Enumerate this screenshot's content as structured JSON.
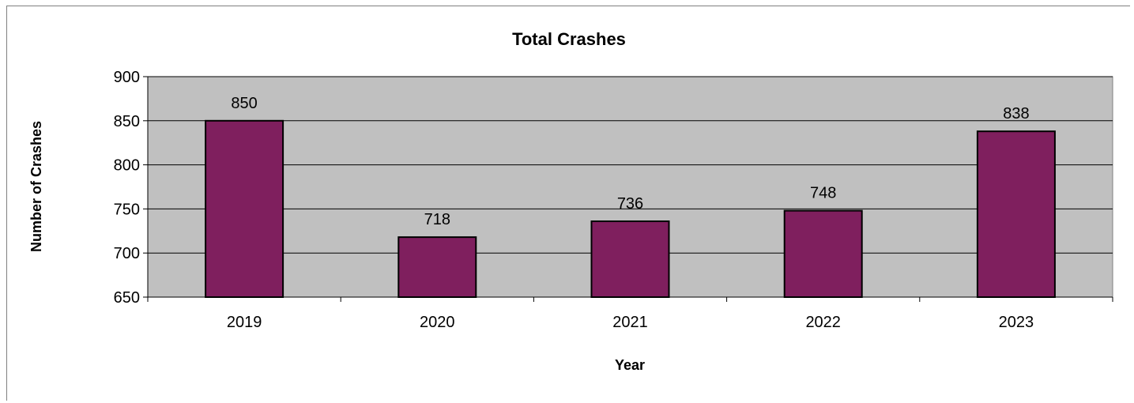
{
  "chart_data": {
    "type": "bar",
    "title": "Total Crashes",
    "xlabel": "Year",
    "ylabel": "Number of Crashes",
    "categories": [
      "2019",
      "2020",
      "2021",
      "2022",
      "2023"
    ],
    "values": [
      850,
      718,
      736,
      748,
      838
    ],
    "ylim": [
      650,
      900
    ],
    "yticks": [
      650,
      700,
      750,
      800,
      850,
      900
    ],
    "grid": true,
    "data_labels": true,
    "legend": "none",
    "colors": {
      "bar": "#7f1f5e",
      "plot_area": "#c0c0c0",
      "bar_edge": "#000000"
    }
  }
}
